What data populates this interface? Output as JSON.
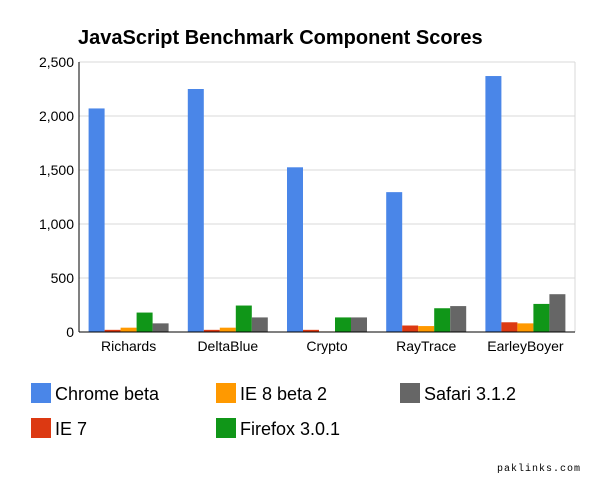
{
  "chart_data": {
    "type": "bar",
    "title": "JavaScript Benchmark Component Scores",
    "categories": [
      "Richards",
      "DeltaBlue",
      "Crypto",
      "RayTrace",
      "EarleyBoyer"
    ],
    "series": [
      {
        "name": "Chrome beta",
        "color": "#4a86e8",
        "values": [
          2070,
          2250,
          1525,
          1295,
          2370
        ]
      },
      {
        "name": "IE 7",
        "color": "#dc3912",
        "values": [
          20,
          20,
          20,
          60,
          90
        ]
      },
      {
        "name": "IE 8 beta 2",
        "color": "#ff9900",
        "values": [
          40,
          40,
          5,
          55,
          80
        ]
      },
      {
        "name": "Firefox 3.0.1",
        "color": "#109618",
        "values": [
          180,
          245,
          135,
          220,
          260
        ]
      },
      {
        "name": "Safari 3.1.2",
        "color": "#666666",
        "values": [
          80,
          135,
          135,
          240,
          350
        ]
      }
    ],
    "ylim": [
      0,
      2500
    ],
    "yticks": [
      "0",
      "500",
      "1,000",
      "1,500",
      "2,000",
      "2,500"
    ],
    "ytick_values": [
      0,
      500,
      1000,
      1500,
      2000,
      2500
    ],
    "grid": true,
    "legend_position": "bottom",
    "xlabel": "",
    "ylabel": ""
  },
  "watermark": "paklinks.com"
}
